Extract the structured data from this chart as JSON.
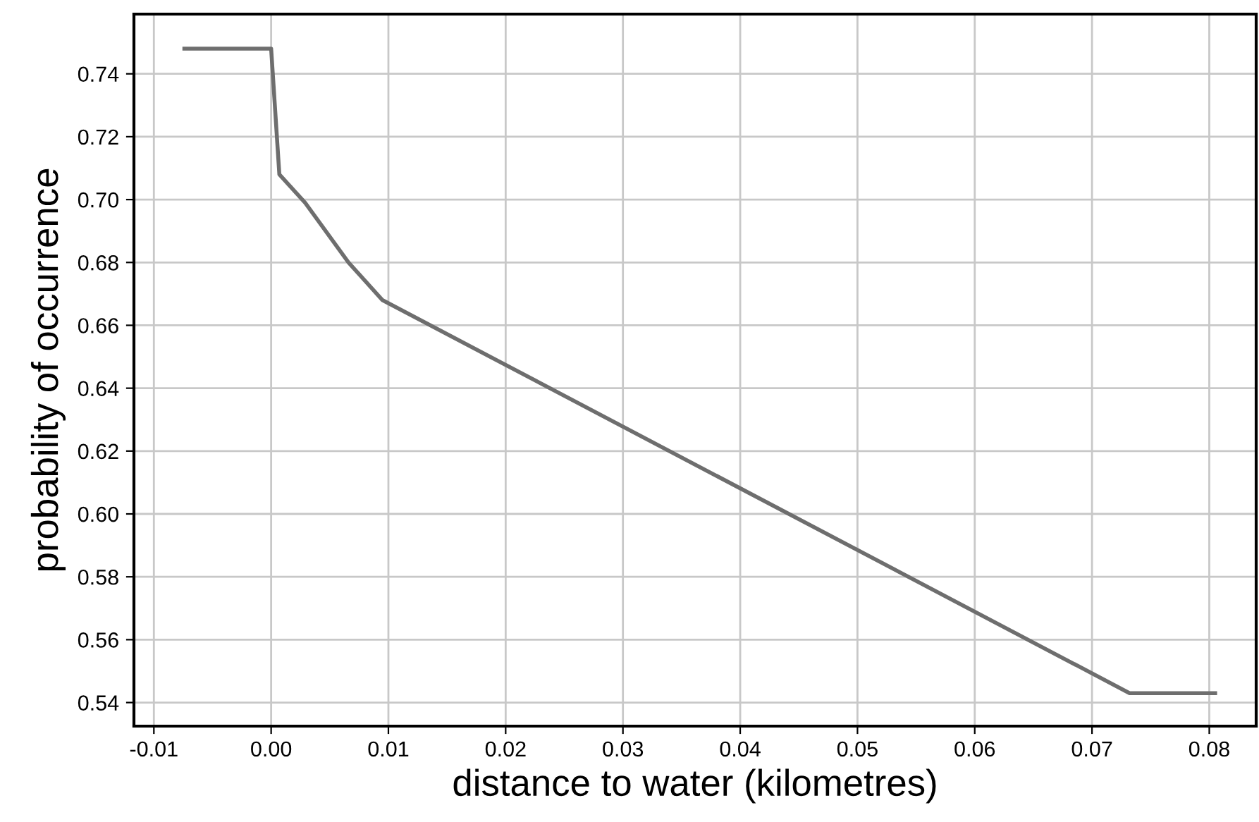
{
  "chart_data": {
    "type": "line",
    "xlabel": "distance to water (kilometres)",
    "ylabel": "probability of occurrence",
    "series": [
      {
        "color": "#6e6e6e",
        "x": [
          -0.0074,
          0.0,
          0.0007,
          0.0029,
          0.0066,
          0.0095,
          0.0732,
          0.0805
        ],
        "values": [
          0.748,
          0.748,
          0.708,
          0.699,
          0.68,
          0.668,
          0.543,
          0.543
        ]
      }
    ],
    "xlim": [
      -0.0117,
      0.084
    ],
    "ylim": [
      0.5325,
      0.759
    ],
    "xticks": [
      {
        "value": -0.01,
        "label": "-0.01"
      },
      {
        "value": 0.0,
        "label": "0.00"
      },
      {
        "value": 0.01,
        "label": "0.01"
      },
      {
        "value": 0.02,
        "label": "0.02"
      },
      {
        "value": 0.03,
        "label": "0.03"
      },
      {
        "value": 0.04,
        "label": "0.04"
      },
      {
        "value": 0.05,
        "label": "0.05"
      },
      {
        "value": 0.06,
        "label": "0.06"
      },
      {
        "value": 0.07,
        "label": "0.07"
      },
      {
        "value": 0.08,
        "label": "0.08"
      }
    ],
    "yticks": [
      {
        "value": 0.54,
        "label": "0.54"
      },
      {
        "value": 0.56,
        "label": "0.56"
      },
      {
        "value": 0.58,
        "label": "0.58"
      },
      {
        "value": 0.6,
        "label": "0.60"
      },
      {
        "value": 0.62,
        "label": "0.62"
      },
      {
        "value": 0.64,
        "label": "0.64"
      },
      {
        "value": 0.66,
        "label": "0.66"
      },
      {
        "value": 0.68,
        "label": "0.68"
      },
      {
        "value": 0.7,
        "label": "0.70"
      },
      {
        "value": 0.72,
        "label": "0.72"
      },
      {
        "value": 0.74,
        "label": "0.74"
      }
    ],
    "grid": true,
    "marker": "none",
    "line_style": "solid"
  }
}
